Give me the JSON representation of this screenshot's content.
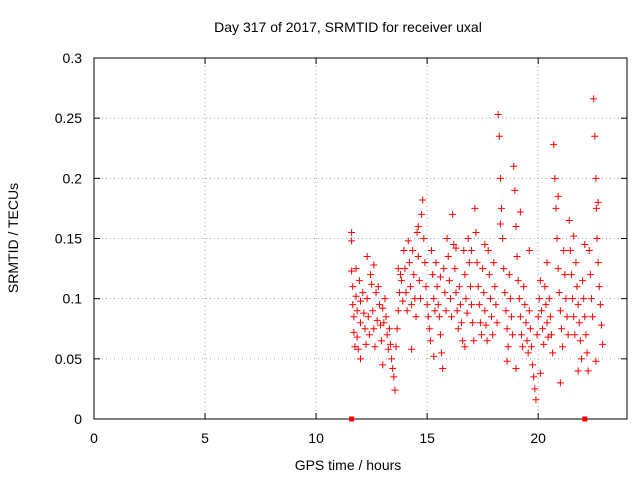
{
  "chart_data": {
    "type": "scatter",
    "title": "Day 317 of 2017, SRMTID for receiver uxal",
    "xlabel": "GPS time / hours",
    "ylabel": "SRMTID / TECUs",
    "xlim": [
      0,
      24
    ],
    "ylim": [
      0,
      0.3
    ],
    "x_ticks": [
      0,
      5,
      10,
      15,
      20
    ],
    "y_ticks": [
      0,
      0.05,
      0.1,
      0.15,
      0.2,
      0.25,
      0.3
    ],
    "x_tick_labels": [
      "0",
      "5",
      "10",
      "15",
      "20"
    ],
    "y_tick_labels": [
      "0",
      "0.05",
      "0.1",
      "0.15",
      "0.2",
      "0.25",
      "0.3"
    ],
    "grid": true,
    "grid_style": "dotted",
    "marker": "plus",
    "color": "#ff0000",
    "points": [
      [
        11.6,
        0.155
      ],
      [
        11.6,
        0.148
      ],
      [
        11.6,
        0.123
      ],
      [
        11.65,
        0.11
      ],
      [
        11.65,
        0.095
      ],
      [
        11.7,
        0.085
      ],
      [
        11.7,
        0.072
      ],
      [
        11.75,
        0.06
      ],
      [
        11.8,
        0.125
      ],
      [
        11.8,
        0.102
      ],
      [
        11.85,
        0.09
      ],
      [
        11.85,
        0.068
      ],
      [
        11.9,
        0.058
      ],
      [
        11.95,
        0.115
      ],
      [
        12.0,
        0.098
      ],
      [
        12.0,
        0.08
      ],
      [
        12.1,
        0.105
      ],
      [
        12.15,
        0.088
      ],
      [
        12.2,
        0.075
      ],
      [
        12.25,
        0.062
      ],
      [
        12.3,
        0.1
      ],
      [
        12.35,
        0.085
      ],
      [
        12.4,
        0.07
      ],
      [
        12.45,
        0.12
      ],
      [
        12.5,
        0.112
      ],
      [
        12.55,
        0.09
      ],
      [
        12.6,
        0.075
      ],
      [
        12.65,
        0.06
      ],
      [
        12.7,
        0.105
      ],
      [
        12.75,
        0.082
      ],
      [
        12.8,
        0.11
      ],
      [
        12.85,
        0.095
      ],
      [
        12.9,
        0.078
      ],
      [
        12.95,
        0.065
      ],
      [
        13.0,
        0.092
      ],
      [
        13.05,
        0.08
      ],
      [
        13.1,
        0.1
      ],
      [
        13.15,
        0.085
      ],
      [
        13.2,
        0.07
      ],
      [
        13.25,
        0.058
      ],
      [
        13.3,
        0.075
      ],
      [
        13.35,
        0.062
      ],
      [
        13.4,
        0.05
      ],
      [
        13.45,
        0.042
      ],
      [
        13.5,
        0.035
      ],
      [
        13.55,
        0.024
      ],
      [
        13.6,
        0.06
      ],
      [
        13.65,
        0.075
      ],
      [
        13.7,
        0.09
      ],
      [
        13.75,
        0.105
      ],
      [
        13.8,
        0.12
      ],
      [
        13.85,
        0.115
      ],
      [
        13.9,
        0.098
      ],
      [
        13.95,
        0.14
      ],
      [
        14.0,
        0.125
      ],
      [
        14.05,
        0.105
      ],
      [
        14.1,
        0.09
      ],
      [
        14.15,
        0.148
      ],
      [
        14.2,
        0.13
      ],
      [
        14.25,
        0.11
      ],
      [
        14.3,
        0.095
      ],
      [
        14.35,
        0.14
      ],
      [
        14.4,
        0.12
      ],
      [
        14.45,
        0.1
      ],
      [
        14.5,
        0.085
      ],
      [
        14.55,
        0.155
      ],
      [
        14.6,
        0.135
      ],
      [
        14.65,
        0.115
      ],
      [
        14.7,
        0.1
      ],
      [
        14.75,
        0.17
      ],
      [
        14.8,
        0.182
      ],
      [
        14.85,
        0.15
      ],
      [
        14.9,
        0.13
      ],
      [
        14.95,
        0.11
      ],
      [
        15.0,
        0.095
      ],
      [
        15.05,
        0.085
      ],
      [
        15.1,
        0.075
      ],
      [
        15.15,
        0.065
      ],
      [
        15.2,
        0.14
      ],
      [
        15.25,
        0.12
      ],
      [
        15.3,
        0.1
      ],
      [
        15.35,
        0.09
      ],
      [
        15.4,
        0.13
      ],
      [
        15.45,
        0.11
      ],
      [
        15.5,
        0.095
      ],
      [
        15.55,
        0.085
      ],
      [
        15.6,
        0.07
      ],
      [
        15.65,
        0.055
      ],
      [
        15.7,
        0.042
      ],
      [
        15.75,
        0.125
      ],
      [
        15.8,
        0.105
      ],
      [
        15.85,
        0.09
      ],
      [
        15.9,
        0.15
      ],
      [
        15.95,
        0.135
      ],
      [
        16.0,
        0.115
      ],
      [
        16.05,
        0.1
      ],
      [
        16.1,
        0.085
      ],
      [
        16.15,
        0.17
      ],
      [
        16.2,
        0.145
      ],
      [
        16.25,
        0.125
      ],
      [
        16.3,
        0.105
      ],
      [
        16.35,
        0.09
      ],
      [
        16.4,
        0.075
      ],
      [
        16.45,
        0.11
      ],
      [
        16.5,
        0.095
      ],
      [
        16.55,
        0.08
      ],
      [
        16.6,
        0.065
      ],
      [
        16.65,
        0.14
      ],
      [
        16.7,
        0.12
      ],
      [
        16.75,
        0.1
      ],
      [
        16.8,
        0.088
      ],
      [
        16.85,
        0.15
      ],
      [
        16.9,
        0.13
      ],
      [
        16.95,
        0.11
      ],
      [
        17.0,
        0.095
      ],
      [
        17.05,
        0.08
      ],
      [
        17.1,
        0.065
      ],
      [
        17.15,
        0.175
      ],
      [
        17.2,
        0.155
      ],
      [
        17.25,
        0.13
      ],
      [
        17.3,
        0.11
      ],
      [
        17.35,
        0.095
      ],
      [
        17.4,
        0.08
      ],
      [
        17.45,
        0.07
      ],
      [
        17.5,
        0.125
      ],
      [
        17.55,
        0.105
      ],
      [
        17.6,
        0.09
      ],
      [
        17.65,
        0.078
      ],
      [
        17.7,
        0.065
      ],
      [
        17.75,
        0.14
      ],
      [
        17.8,
        0.12
      ],
      [
        17.85,
        0.1
      ],
      [
        17.9,
        0.085
      ],
      [
        17.95,
        0.07
      ],
      [
        18.0,
        0.13
      ],
      [
        18.05,
        0.11
      ],
      [
        18.1,
        0.095
      ],
      [
        18.15,
        0.08
      ],
      [
        18.2,
        0.253
      ],
      [
        18.25,
        0.235
      ],
      [
        18.3,
        0.2
      ],
      [
        18.35,
        0.175
      ],
      [
        18.4,
        0.15
      ],
      [
        18.45,
        0.125
      ],
      [
        18.5,
        0.105
      ],
      [
        18.55,
        0.09
      ],
      [
        18.6,
        0.075
      ],
      [
        18.65,
        0.06
      ],
      [
        18.7,
        0.12
      ],
      [
        18.75,
        0.1
      ],
      [
        18.8,
        0.085
      ],
      [
        18.85,
        0.07
      ],
      [
        18.9,
        0.21
      ],
      [
        18.95,
        0.19
      ],
      [
        19.0,
        0.16
      ],
      [
        19.05,
        0.135
      ],
      [
        19.1,
        0.115
      ],
      [
        19.15,
        0.1
      ],
      [
        19.2,
        0.085
      ],
      [
        19.25,
        0.07
      ],
      [
        19.3,
        0.06
      ],
      [
        19.35,
        0.11
      ],
      [
        19.4,
        0.095
      ],
      [
        19.45,
        0.08
      ],
      [
        19.5,
        0.065
      ],
      [
        19.55,
        0.055
      ],
      [
        19.6,
        0.09
      ],
      [
        19.65,
        0.075
      ],
      [
        19.7,
        0.06
      ],
      [
        19.75,
        0.045
      ],
      [
        19.8,
        0.035
      ],
      [
        19.85,
        0.025
      ],
      [
        19.9,
        0.016
      ],
      [
        19.95,
        0.07
      ],
      [
        20.0,
        0.085
      ],
      [
        20.05,
        0.1
      ],
      [
        20.1,
        0.115
      ],
      [
        20.15,
        0.09
      ],
      [
        20.2,
        0.075
      ],
      [
        20.25,
        0.062
      ],
      [
        20.3,
        0.11
      ],
      [
        20.35,
        0.095
      ],
      [
        20.4,
        0.08
      ],
      [
        20.45,
        0.068
      ],
      [
        20.5,
        0.1
      ],
      [
        20.55,
        0.085
      ],
      [
        20.6,
        0.07
      ],
      [
        20.65,
        0.055
      ],
      [
        20.7,
        0.228
      ],
      [
        20.75,
        0.2
      ],
      [
        20.8,
        0.175
      ],
      [
        20.85,
        0.15
      ],
      [
        20.9,
        0.125
      ],
      [
        20.95,
        0.105
      ],
      [
        21.0,
        0.09
      ],
      [
        21.05,
        0.075
      ],
      [
        21.1,
        0.06
      ],
      [
        21.15,
        0.14
      ],
      [
        21.2,
        0.12
      ],
      [
        21.25,
        0.1
      ],
      [
        21.3,
        0.085
      ],
      [
        21.35,
        0.07
      ],
      [
        21.4,
        0.165
      ],
      [
        21.45,
        0.14
      ],
      [
        21.5,
        0.12
      ],
      [
        21.55,
        0.1
      ],
      [
        21.6,
        0.085
      ],
      [
        21.65,
        0.07
      ],
      [
        21.7,
        0.13
      ],
      [
        21.75,
        0.11
      ],
      [
        21.8,
        0.095
      ],
      [
        21.85,
        0.08
      ],
      [
        21.9,
        0.065
      ],
      [
        21.95,
        0.05
      ],
      [
        22.0,
        0.115
      ],
      [
        22.05,
        0.1
      ],
      [
        22.1,
        0.085
      ],
      [
        22.15,
        0.07
      ],
      [
        22.2,
        0.055
      ],
      [
        22.25,
        0.04
      ],
      [
        22.3,
        0.14
      ],
      [
        22.35,
        0.12
      ],
      [
        22.4,
        0.1
      ],
      [
        22.45,
        0.085
      ],
      [
        22.5,
        0.266
      ],
      [
        22.55,
        0.235
      ],
      [
        22.6,
        0.2
      ],
      [
        22.62,
        0.175
      ],
      [
        22.65,
        0.15
      ],
      [
        22.7,
        0.13
      ],
      [
        22.75,
        0.11
      ],
      [
        22.8,
        0.095
      ],
      [
        22.85,
        0.078
      ],
      [
        22.9,
        0.062
      ],
      [
        12.3,
        0.135
      ],
      [
        12.6,
        0.128
      ],
      [
        13.7,
        0.125
      ],
      [
        14.6,
        0.16
      ],
      [
        15.6,
        0.118
      ],
      [
        16.3,
        0.142
      ],
      [
        17.0,
        0.14
      ],
      [
        17.6,
        0.145
      ],
      [
        18.3,
        0.162
      ],
      [
        19.2,
        0.172
      ],
      [
        19.6,
        0.14
      ],
      [
        20.4,
        0.13
      ],
      [
        20.9,
        0.185
      ],
      [
        21.6,
        0.152
      ],
      [
        22.1,
        0.145
      ],
      [
        22.7,
        0.18
      ],
      [
        12.0,
        0.05
      ],
      [
        13.0,
        0.045
      ],
      [
        14.3,
        0.058
      ],
      [
        15.3,
        0.052
      ],
      [
        16.7,
        0.06
      ],
      [
        18.6,
        0.048
      ],
      [
        19.0,
        0.042
      ],
      [
        20.1,
        0.038
      ],
      [
        21.0,
        0.03
      ],
      [
        21.8,
        0.04
      ],
      [
        22.6,
        0.048
      ]
    ],
    "markers_at_zero": [
      11.6,
      22.1
    ]
  }
}
